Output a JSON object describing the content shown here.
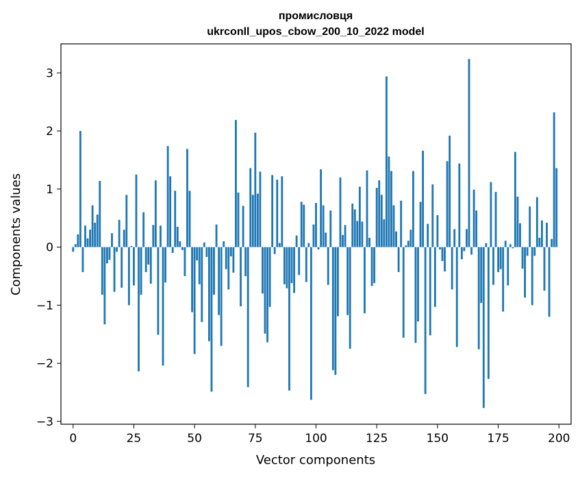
{
  "chart_data": {
    "type": "bar",
    "title_line1": "промисловця",
    "title_line2": "ukrconll_upos_cbow_200_10_2022 model",
    "xlabel": "Vector components",
    "ylabel": "Components values",
    "xlim": [
      -5,
      205
    ],
    "ylim": [
      -3.05,
      3.5
    ],
    "xticks": [
      0,
      25,
      50,
      75,
      100,
      125,
      150,
      175,
      200
    ],
    "yticks": [
      -3,
      -2,
      -1,
      0,
      1,
      2,
      3
    ],
    "ytick_labels": [
      "−3",
      "−2",
      "−1",
      "0",
      "1",
      "2",
      "3"
    ],
    "bar_color": "#1f77b4",
    "values": [
      -0.08,
      0.05,
      0.22,
      2.0,
      -0.43,
      0.37,
      0.15,
      0.3,
      0.72,
      0.42,
      0.56,
      1.14,
      -0.82,
      -1.33,
      -0.28,
      -0.22,
      0.24,
      -0.77,
      -0.08,
      0.47,
      -0.7,
      0.3,
      0.9,
      -1.0,
      0.02,
      -0.66,
      1.25,
      -2.14,
      -0.82,
      0.6,
      -0.43,
      -0.3,
      -0.63,
      0.38,
      1.15,
      -1.51,
      0.37,
      -2.04,
      -0.61,
      1.74,
      1.22,
      -0.1,
      0.97,
      0.35,
      0.1,
      -0.05,
      -0.5,
      1.69,
      0.97,
      -1.12,
      -1.84,
      -0.23,
      -0.64,
      -1.29,
      0.08,
      -0.17,
      -1.62,
      -2.49,
      -0.82,
      0.39,
      -1.17,
      -1.7,
      0.1,
      -0.38,
      -0.73,
      -0.16,
      -0.44,
      2.19,
      0.94,
      -1.02,
      0.71,
      -0.5,
      -2.41,
      1.36,
      0.9,
      1.97,
      0.92,
      1.3,
      -0.8,
      -1.49,
      -1.64,
      -1.03,
      1.24,
      -0.12,
      1.16,
      0.07,
      1.22,
      -0.64,
      -0.71,
      -2.47,
      -0.62,
      -0.79,
      0.2,
      -0.48,
      0.78,
      0.73,
      -0.6,
      0.07,
      -2.63,
      0.39,
      0.76,
      -0.04,
      1.34,
      0.72,
      0.25,
      -0.65,
      0.63,
      -2.12,
      -2.2,
      -1.19,
      1.2,
      0.21,
      0.38,
      -1.17,
      -1.75,
      0.75,
      0.65,
      0.45,
      1.04,
      0.44,
      -1.14,
      1.32,
      0.16,
      -0.67,
      -0.62,
      1.02,
      1.15,
      0.9,
      0.48,
      2.94,
      1.56,
      1.31,
      0.72,
      0.27,
      -0.43,
      0.8,
      -1.56,
      0.03,
      0.11,
      0.3,
      1.31,
      -1.65,
      -1.28,
      0.78,
      1.66,
      -2.53,
      0.4,
      -1.52,
      1.08,
      -1.03,
      0.55,
      -0.04,
      -0.24,
      -0.42,
      1.48,
      1.92,
      -0.73,
      0.31,
      -1.72,
      1.44,
      -0.21,
      -0.07,
      0.31,
      3.24,
      -0.13,
      0.99,
      0.63,
      -1.76,
      -0.96,
      -2.77,
      0.07,
      -2.27,
      1.12,
      -0.65,
      0.95,
      -0.43,
      -0.38,
      -1.11,
      0.11,
      -0.66,
      0.05,
      -0.02,
      1.64,
      0.87,
      0.41,
      -0.37,
      -0.87,
      -0.15,
      0.7,
      -1.0,
      -0.15,
      0.86,
      0.16,
      0.46,
      -0.75,
      0.42,
      -1.2,
      0.14,
      2.32,
      1.36
    ]
  }
}
